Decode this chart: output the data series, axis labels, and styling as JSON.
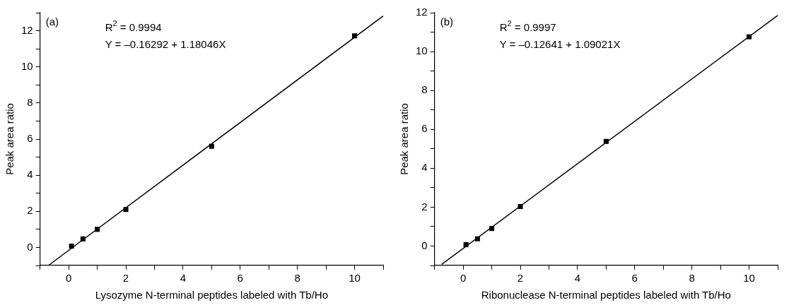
{
  "chart_data": [
    {
      "type": "scatter",
      "xlabel": "Lysozyme N-terminal peptides labeled with Tb/Ho",
      "ylabel": "Peak area ratio",
      "x": [
        0.1,
        0.5,
        1,
        2,
        5,
        10
      ],
      "series": [
        {
          "color": "#000000",
          "marker": "square",
          "values": [
            0.07,
            0.47,
            1.0,
            2.1,
            5.6,
            11.72
          ]
        },
        {
          "type": "line",
          "color": "#000000",
          "marker": "none",
          "line_style": "solid",
          "x": [
            -0.7,
            11
          ],
          "values": [
            -0.99,
            12.82
          ]
        }
      ],
      "xlim": [
        -1,
        11
      ],
      "ylim": [
        -1,
        13
      ],
      "xticks": [
        {
          "value": -1,
          "label": null
        },
        0,
        {
          "value": 1,
          "label": null
        },
        2,
        {
          "value": 3,
          "label": null
        },
        4,
        {
          "value": 5,
          "label": null
        },
        6,
        {
          "value": 7,
          "label": null
        },
        8,
        {
          "value": 9,
          "label": null
        },
        10,
        {
          "value": 11,
          "label": null
        }
      ],
      "yticks": [
        {
          "value": -1,
          "label": null
        },
        0,
        {
          "value": 1,
          "label": null
        },
        2,
        {
          "value": 3,
          "label": null
        },
        4,
        {
          "value": 5,
          "label": null
        },
        6,
        {
          "value": 7,
          "label": null
        },
        8,
        {
          "value": 9,
          "label": null
        },
        10,
        {
          "value": 11,
          "label": null
        },
        12,
        {
          "value": 13,
          "label": null
        }
      ],
      "grid": false,
      "legend": false,
      "annotations": [
        "(a)",
        "R$^{2}$ = 0.9994",
        "Y = –0.16292 + 1.18046X"
      ]
    },
    {
      "type": "scatter",
      "xlabel": "Ribonuclease N-terminal peptides labeled with Tb/Ho",
      "ylabel": "Peak area ratio",
      "x": [
        0.1,
        0.5,
        1,
        2,
        5,
        10
      ],
      "series": [
        {
          "color": "#000000",
          "marker": "square",
          "values": [
            0.07,
            0.37,
            0.9,
            2.03,
            5.38,
            10.76
          ]
        },
        {
          "type": "line",
          "color": "#000000",
          "marker": "none",
          "line_style": "solid",
          "x": [
            -0.75,
            11
          ],
          "values": [
            -0.94,
            11.86
          ]
        }
      ],
      "xlim": [
        -1,
        11
      ],
      "ylim": [
        -1,
        12
      ],
      "xticks": [
        {
          "value": -1,
          "label": null
        },
        0,
        {
          "value": 1,
          "label": null
        },
        2,
        {
          "value": 3,
          "label": null
        },
        4,
        {
          "value": 5,
          "label": null
        },
        6,
        {
          "value": 7,
          "label": null
        },
        8,
        {
          "value": 9,
          "label": null
        },
        10,
        {
          "value": 11,
          "label": null
        }
      ],
      "yticks": [
        {
          "value": -1,
          "label": null
        },
        0,
        {
          "value": 1,
          "label": null
        },
        2,
        {
          "value": 3,
          "label": null
        },
        4,
        {
          "value": 5,
          "label": null
        },
        6,
        {
          "value": 7,
          "label": null
        },
        8,
        {
          "value": 9,
          "label": null
        },
        10,
        {
          "value": 11,
          "label": null
        },
        12
      ],
      "grid": false,
      "legend": false,
      "annotations": [
        "(b)",
        "R$^{2}$ = 0.9997",
        "Y = –0.12641 + 1.09021X"
      ]
    }
  ]
}
